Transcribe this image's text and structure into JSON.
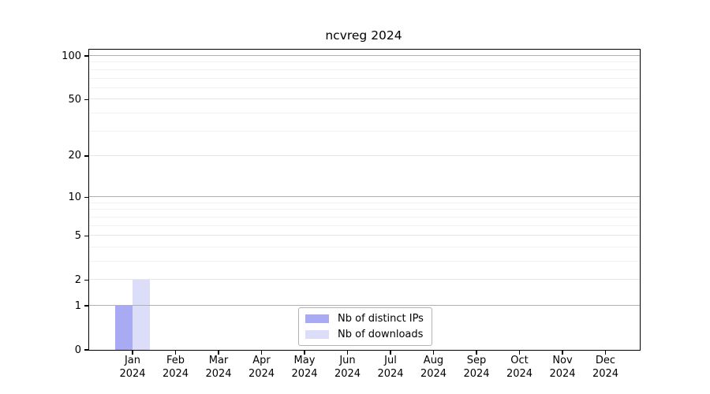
{
  "chart_data": {
    "type": "bar",
    "title": "ncvreg 2024",
    "scale": "log1p",
    "categories": [
      {
        "month": "Jan",
        "year": "2024"
      },
      {
        "month": "Feb",
        "year": "2024"
      },
      {
        "month": "Mar",
        "year": "2024"
      },
      {
        "month": "Apr",
        "year": "2024"
      },
      {
        "month": "May",
        "year": "2024"
      },
      {
        "month": "Jun",
        "year": "2024"
      },
      {
        "month": "Jul",
        "year": "2024"
      },
      {
        "month": "Aug",
        "year": "2024"
      },
      {
        "month": "Sep",
        "year": "2024"
      },
      {
        "month": "Oct",
        "year": "2024"
      },
      {
        "month": "Nov",
        "year": "2024"
      },
      {
        "month": "Dec",
        "year": "2024"
      }
    ],
    "series": [
      {
        "name": "Nb of distinct IPs",
        "color": "#a8aaf3",
        "values": [
          1,
          0,
          0,
          0,
          0,
          0,
          0,
          0,
          0,
          0,
          0,
          0
        ]
      },
      {
        "name": "Nb of downloads",
        "color": "#dcddf8",
        "values": [
          2,
          0,
          0,
          0,
          0,
          0,
          0,
          0,
          0,
          0,
          0,
          0
        ]
      }
    ],
    "y_axis": {
      "tick_values": [
        0,
        1,
        2,
        5,
        10,
        20,
        50,
        100
      ],
      "major_grid_values": [
        1,
        10,
        100
      ],
      "light_grid_values": [
        2,
        5,
        20,
        50
      ],
      "minor_grid_values": [
        3,
        4,
        6,
        7,
        8,
        9,
        30,
        40,
        60,
        70,
        80,
        90
      ],
      "ylim": [
        0,
        110
      ]
    },
    "legend": {
      "position": "lower center",
      "border_color": "#b3b3b3"
    },
    "colors": {
      "axis": "#000000",
      "major_grid": "#b0b0b0",
      "light_grid": "#e6e6e6",
      "minor_grid": "#f2f2f2",
      "background": "#ffffff"
    }
  }
}
